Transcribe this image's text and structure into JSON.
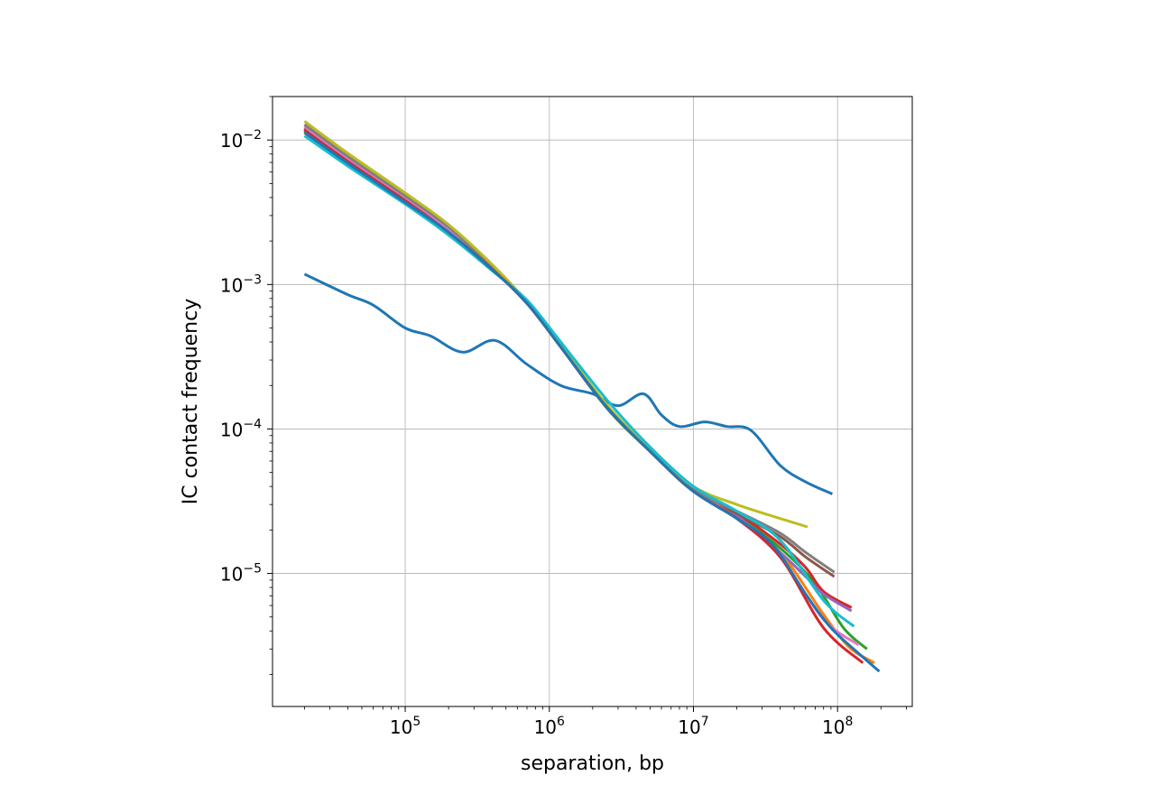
{
  "chart_data": {
    "type": "line",
    "title": "",
    "xlabel": "separation, bp",
    "ylabel": "IC contact frequency",
    "xscale": "log",
    "yscale": "log",
    "xlim": [
      12000,
      330000000
    ],
    "ylim": [
      1.2e-06,
      0.02
    ],
    "grid": true,
    "legend": "none",
    "x_ticks": [
      {
        "value": 100000,
        "base": "10",
        "exp": "5"
      },
      {
        "value": 1000000,
        "base": "10",
        "exp": "6"
      },
      {
        "value": 10000000,
        "base": "10",
        "exp": "7"
      },
      {
        "value": 100000000,
        "base": "10",
        "exp": "8"
      }
    ],
    "y_ticks": [
      {
        "value": 0.01,
        "base": "10",
        "exp": "−2"
      },
      {
        "value": 0.001,
        "base": "10",
        "exp": "−3"
      },
      {
        "value": 0.0001,
        "base": "10",
        "exp": "−4"
      },
      {
        "value": 1e-05,
        "base": "10",
        "exp": "−5"
      }
    ],
    "series": [
      {
        "color": "#1f77b4",
        "x": [
          20000,
          40000,
          60000,
          100000,
          150000,
          250000,
          420000,
          700000,
          1200000,
          2000000,
          3000000,
          4500000,
          6000000,
          8000000,
          12000000,
          17000000,
          25000000,
          40000000,
          60000000,
          92000000
        ],
        "y": [
          0.00118,
          0.00085,
          0.00072,
          0.0005,
          0.00044,
          0.00034,
          0.00041,
          0.00028,
          0.0002,
          0.000175,
          0.000145,
          0.000175,
          0.000125,
          0.000104,
          0.000112,
          0.000104,
          9.8e-05,
          5.6e-05,
          4.3e-05,
          3.55e-05
        ]
      },
      {
        "color": "#ff7f0e",
        "x": [
          20000,
          40000,
          100000,
          200000,
          400000,
          700000,
          1200000,
          2500000,
          5000000,
          10000000,
          20000000,
          40000000,
          80000000,
          120000000,
          180000000
        ],
        "y": [
          0.0112,
          0.0068,
          0.0037,
          0.0023,
          0.00128,
          0.00075,
          0.00038,
          0.000145,
          7.2e-05,
          3.8e-05,
          2.5e-05,
          1.4e-05,
          5.2e-06,
          3.1e-06,
          2.4e-06
        ]
      },
      {
        "color": "#2ca02c",
        "x": [
          20000,
          40000,
          100000,
          200000,
          400000,
          700000,
          1200000,
          2500000,
          5000000,
          10000000,
          20000000,
          40000000,
          70000000,
          110000000,
          160000000
        ],
        "y": [
          0.0116,
          0.007,
          0.0038,
          0.0023,
          0.00128,
          0.00075,
          0.00037,
          0.00014,
          7e-05,
          3.75e-05,
          2.5e-05,
          1.5e-05,
          8.5e-06,
          4.2e-06,
          3e-06
        ]
      },
      {
        "color": "#d62728",
        "x": [
          20000,
          40000,
          100000,
          200000,
          400000,
          700000,
          1200000,
          2500000,
          5000000,
          10000000,
          20000000,
          40000000,
          60000000,
          80000000,
          125000000
        ],
        "y": [
          0.0119,
          0.0072,
          0.0039,
          0.0024,
          0.0013,
          0.00074,
          0.00037,
          0.000142,
          7e-05,
          3.7e-05,
          2.6e-05,
          1.6e-05,
          1.1e-05,
          7.5e-06,
          5.8e-06
        ]
      },
      {
        "color": "#9467bd",
        "x": [
          20000,
          40000,
          100000,
          200000,
          400000,
          700000,
          1200000,
          2500000,
          5000000,
          10000000,
          20000000,
          40000000,
          60000000,
          80000000,
          125000000
        ],
        "y": [
          0.0118,
          0.0071,
          0.0038,
          0.0023,
          0.00128,
          0.00074,
          0.00037,
          0.000142,
          7e-05,
          3.7e-05,
          2.5e-05,
          1.4e-05,
          9.5e-06,
          7.2e-06,
          5.5e-06
        ]
      },
      {
        "color": "#8c564b",
        "x": [
          20000,
          40000,
          100000,
          200000,
          400000,
          700000,
          1200000,
          2500000,
          5000000,
          10000000,
          20000000,
          40000000,
          60000000,
          95000000
        ],
        "y": [
          0.0121,
          0.0073,
          0.0039,
          0.0024,
          0.00131,
          0.00075,
          0.00037,
          0.000142,
          7e-05,
          3.8e-05,
          2.6e-05,
          1.8e-05,
          1.3e-05,
          9.5e-06
        ]
      },
      {
        "color": "#e377c2",
        "x": [
          20000,
          40000,
          100000,
          200000,
          400000,
          700000,
          1200000,
          2500000,
          5000000,
          10000000,
          20000000,
          40000000,
          80000000,
          140000000
        ],
        "y": [
          0.0124,
          0.0074,
          0.004,
          0.0024,
          0.00131,
          0.00076,
          0.00038,
          0.000145,
          7.1e-05,
          3.8e-05,
          2.4e-05,
          1.3e-05,
          4.8e-06,
          3.2e-06
        ]
      },
      {
        "color": "#7f7f7f",
        "x": [
          20000,
          40000,
          100000,
          200000,
          400000,
          700000,
          1200000,
          2500000,
          5000000,
          10000000,
          20000000,
          40000000,
          60000000,
          95000000
        ],
        "y": [
          0.0128,
          0.0077,
          0.0041,
          0.0025,
          0.00132,
          0.00075,
          0.00037,
          0.000143,
          7e-05,
          3.8e-05,
          2.7e-05,
          1.9e-05,
          1.4e-05,
          1.02e-05
        ]
      },
      {
        "color": "#bcbd22",
        "x": [
          20000,
          40000,
          100000,
          200000,
          400000,
          700000,
          1200000,
          2500000,
          5000000,
          10000000,
          20000000,
          40000000,
          62000000
        ],
        "y": [
          0.0135,
          0.0081,
          0.0043,
          0.0026,
          0.00138,
          0.00076,
          0.00038,
          0.000148,
          7.2e-05,
          4e-05,
          3e-05,
          2.4e-05,
          2.1e-05
        ]
      },
      {
        "color": "#17becf",
        "x": [
          20000,
          40000,
          100000,
          200000,
          400000,
          700000,
          1200000,
          2500000,
          5000000,
          10000000,
          20000000,
          40000000,
          80000000,
          130000000
        ],
        "y": [
          0.0107,
          0.0066,
          0.0036,
          0.0022,
          0.00125,
          0.00078,
          0.0004,
          0.00016,
          7.5e-05,
          4e-05,
          2.7e-05,
          1.7e-05,
          6.5e-06,
          4.3e-06
        ]
      },
      {
        "color": "#d62728",
        "x": [
          20000,
          40000,
          100000,
          200000,
          400000,
          700000,
          1200000,
          2500000,
          5000000,
          10000000,
          20000000,
          40000000,
          80000000,
          150000000
        ],
        "y": [
          0.0117,
          0.0071,
          0.0038,
          0.0023,
          0.00128,
          0.00074,
          0.00037,
          0.000142,
          7e-05,
          3.7e-05,
          2.4e-05,
          1.3e-05,
          4.2e-06,
          2.4e-06
        ]
      },
      {
        "color": "#1f77b4",
        "x": [
          20000,
          40000,
          100000,
          200000,
          400000,
          700000,
          1200000,
          2500000,
          5000000,
          10000000,
          20000000,
          35000000,
          60000000,
          90000000,
          140000000,
          195000000
        ],
        "y": [
          0.0113,
          0.0069,
          0.0037,
          0.0023,
          0.00127,
          0.00074,
          0.00037,
          0.000142,
          7e-05,
          3.7e-05,
          2.4e-05,
          1.6e-05,
          7.2e-06,
          4.2e-06,
          2.8e-06,
          2.1e-06
        ]
      }
    ]
  }
}
